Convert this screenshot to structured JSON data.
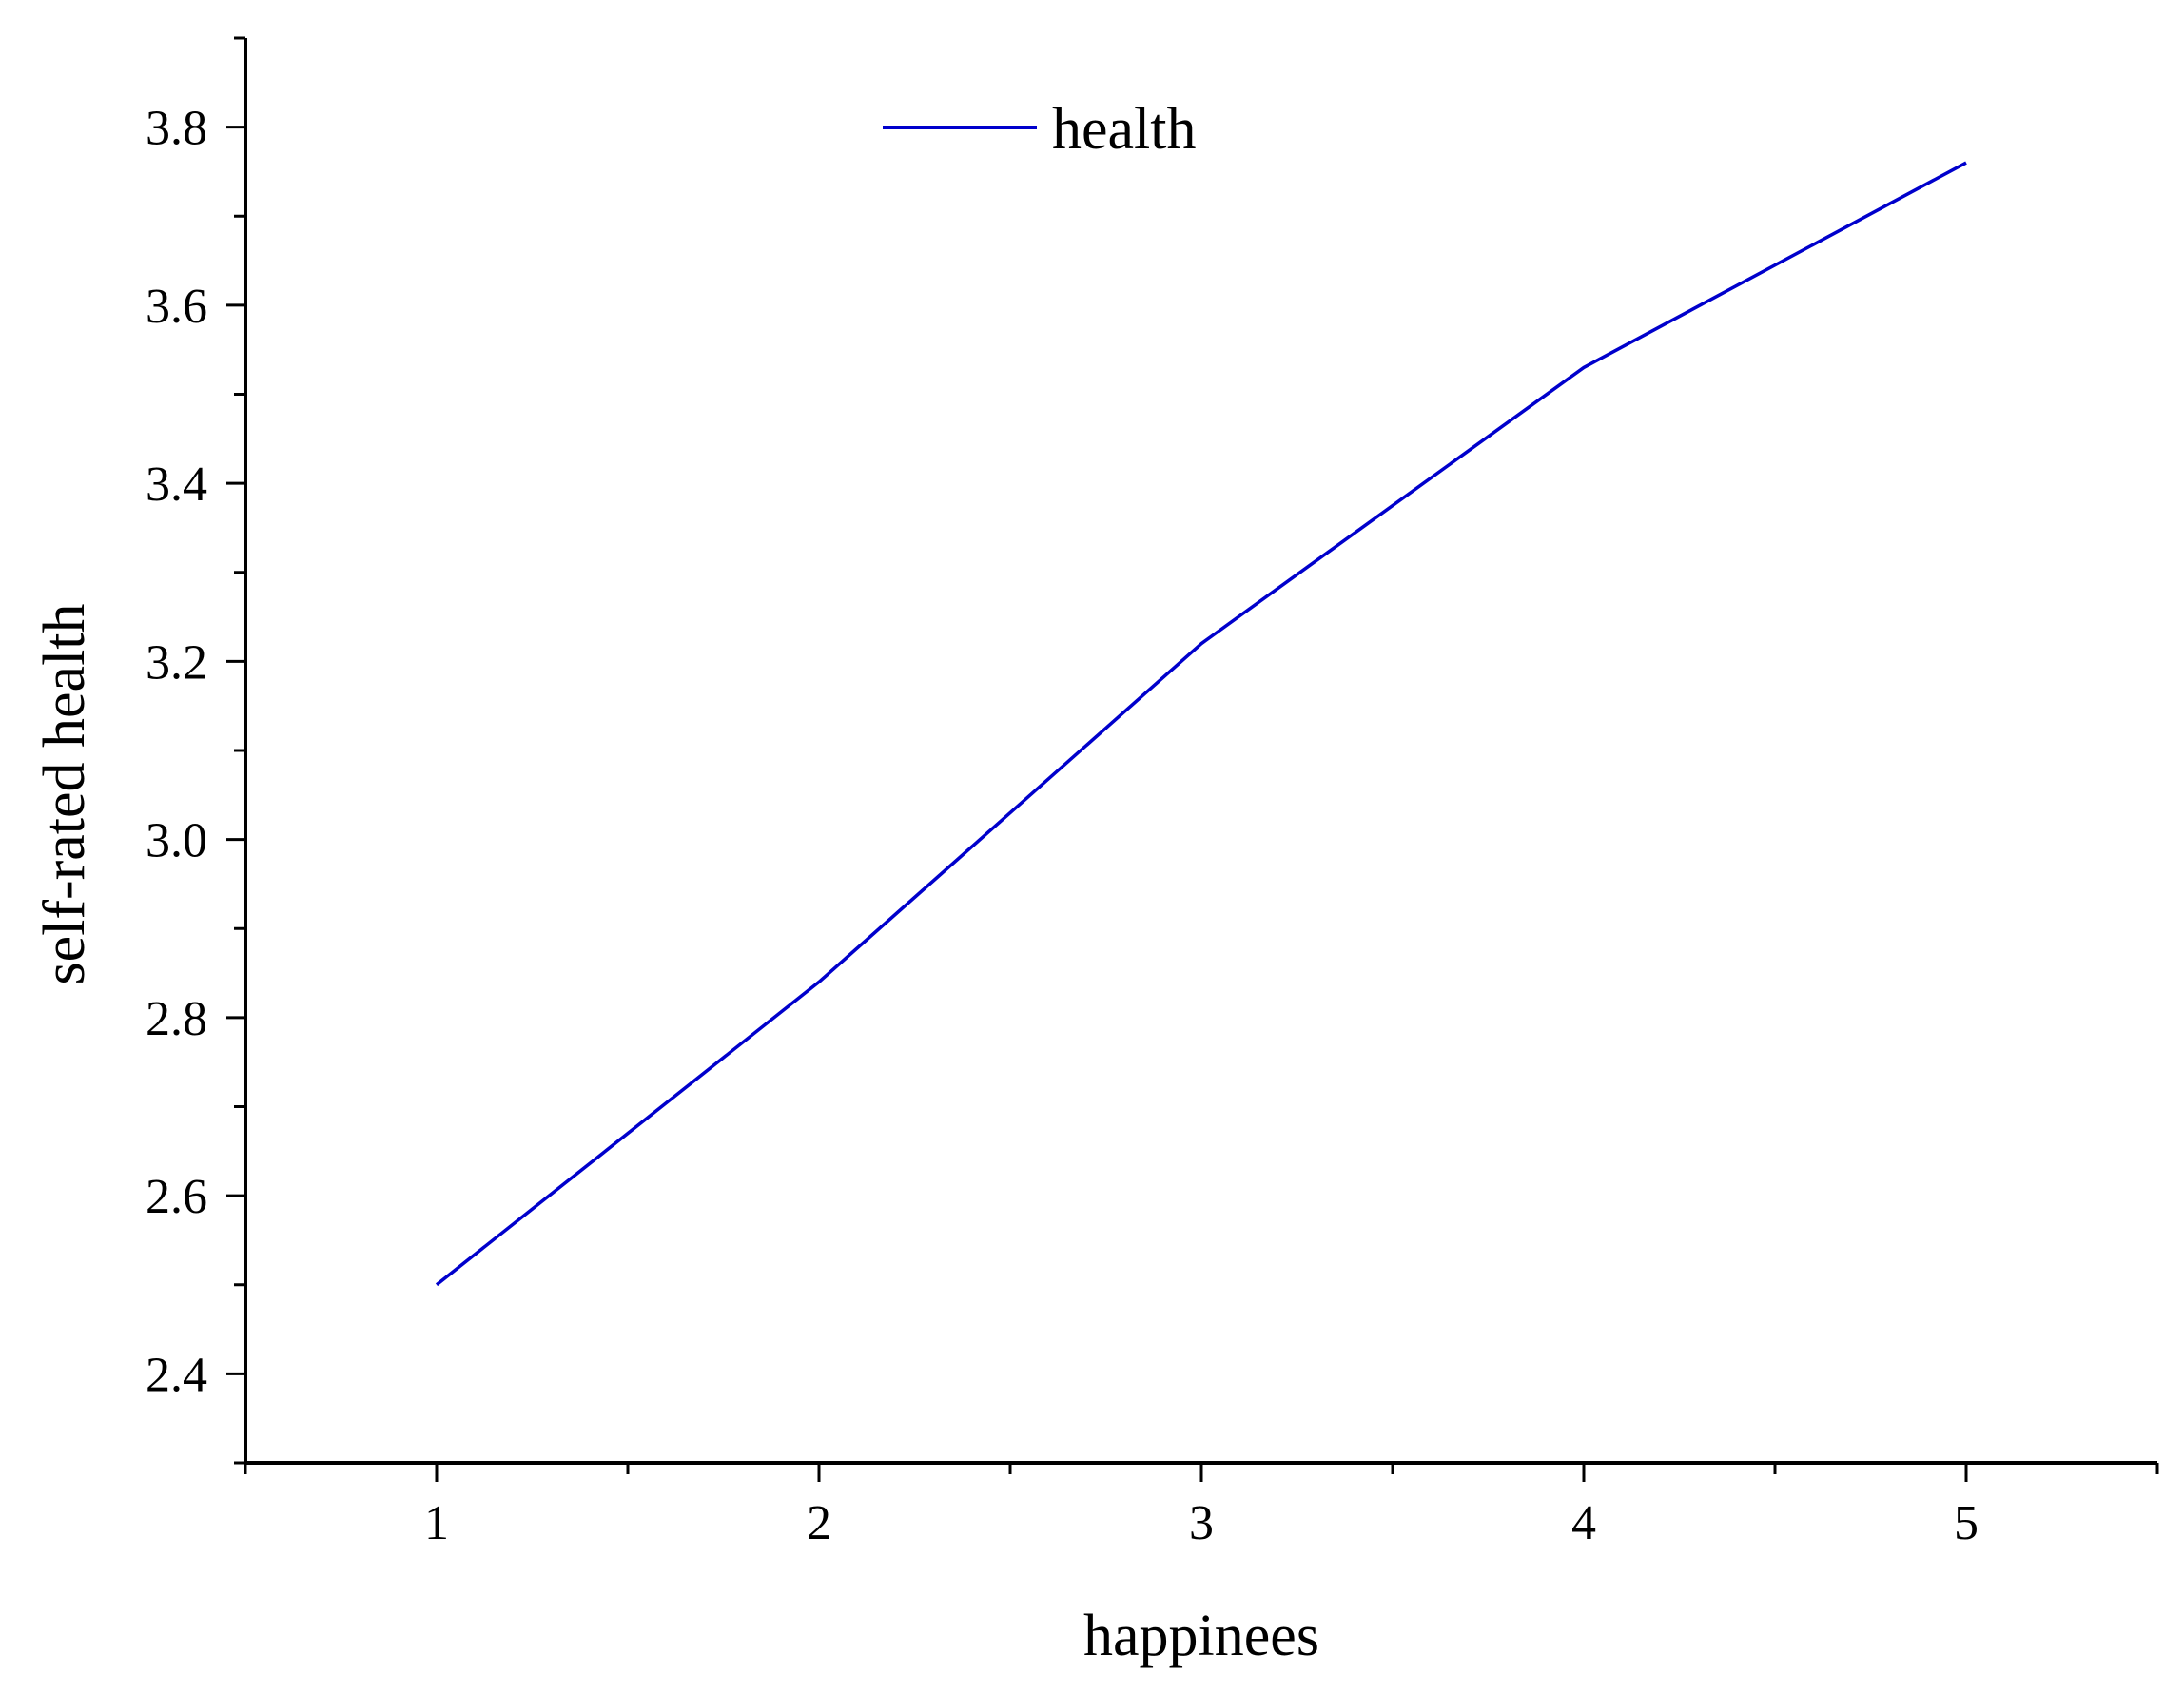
{
  "chart_data": {
    "type": "line",
    "title": "",
    "xlabel": "happinees",
    "ylabel": "self-rated health",
    "x": [
      1,
      2,
      3,
      4,
      5
    ],
    "series": [
      {
        "name": "health",
        "values": [
          2.5,
          2.84,
          3.22,
          3.53,
          3.76
        ]
      }
    ],
    "xlim": [
      0.5,
      5.5
    ],
    "ylim": [
      2.3,
      3.9
    ],
    "x_ticks": [
      "1",
      "2",
      "3",
      "4",
      "5"
    ],
    "y_ticks": [
      "2.4",
      "2.6",
      "2.8",
      "3.0",
      "3.2",
      "3.4",
      "3.6",
      "3.8"
    ],
    "legend_position": "top-center",
    "grid": false,
    "series_color": "#0000cc"
  }
}
